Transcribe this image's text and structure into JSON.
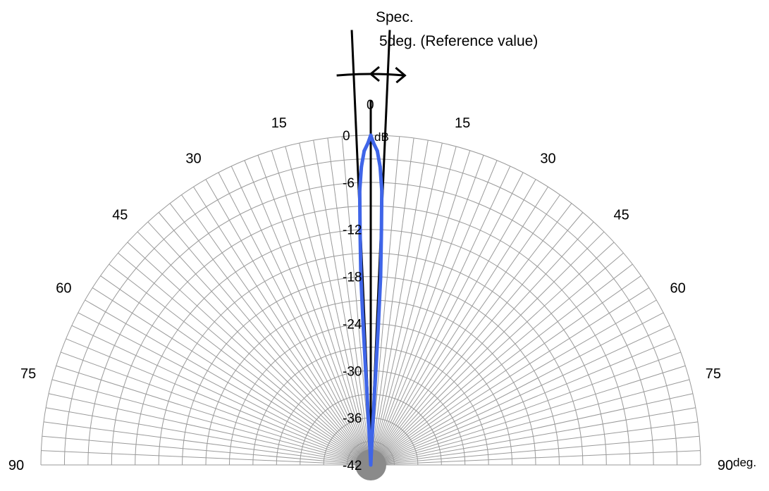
{
  "chart_data": {
    "type": "line",
    "subtype": "polar-half",
    "title": "Spec.",
    "subtitle": "5deg. (Reference value)",
    "radial_unit": "dB",
    "angle_unit": "deg.",
    "radial_range": [
      -42,
      0
    ],
    "radial_ticks": [
      "0",
      "-6",
      "-12",
      "-18",
      "-24",
      "-30",
      "-36",
      "-42"
    ],
    "angle_range": [
      -90,
      90
    ],
    "angle_tick_labels": [
      "90",
      "75",
      "60",
      "45",
      "30",
      "15",
      "0",
      "15",
      "30",
      "45",
      "60",
      "75",
      "90"
    ],
    "grid": true,
    "series": [
      {
        "color": "#3f65e8",
        "angles": [
          -2.8,
          -2.8,
          -3.0,
          -3.0,
          -3.1,
          -3.1,
          -3.0,
          -2.6,
          -2.3,
          -1.8,
          -1.2,
          -0.5,
          0,
          0.5,
          1.2,
          1.8,
          2.3,
          2.6,
          3.0,
          3.1,
          3.1,
          3.0,
          3.0,
          2.8,
          2.8
        ],
        "values": [
          -42,
          -39,
          -36,
          -33,
          -30,
          -24,
          -18,
          -12,
          -7,
          -4,
          -2,
          -1,
          0,
          -1,
          -2,
          -4,
          -7,
          -12,
          -18,
          -24,
          -30,
          -33,
          -36,
          -39,
          -42
        ]
      }
    ],
    "spec_lines_deg": [
      -2.5,
      2.5
    ],
    "spec_width_deg": 5
  }
}
